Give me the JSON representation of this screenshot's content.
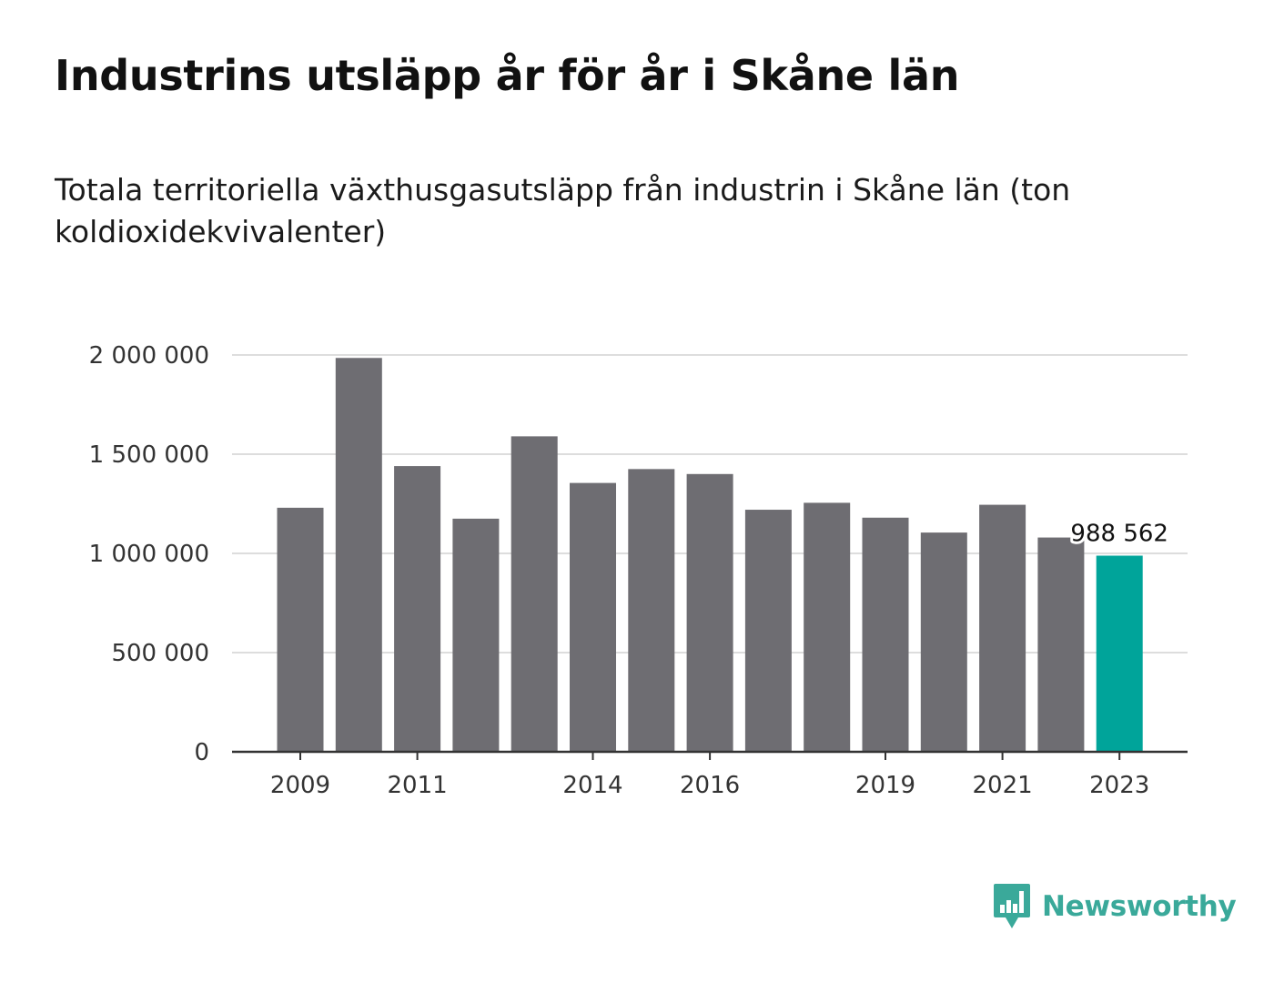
{
  "title": "Industrins utsläpp år för år i Skåne län",
  "subtitle": "Totala territoriella växthusgasutsläpp från industrin i Skåne län (ton koldioxidekvivalenter)",
  "brand": {
    "name": "Newsworthy",
    "color": "#3aa99a",
    "icon": "newsworthy-logo-icon"
  },
  "colors": {
    "bar": "#6e6d72",
    "highlight": "#00a49a",
    "grid": "#dddddd",
    "axis": "#333333",
    "text": "#333333"
  },
  "chart_data": {
    "type": "bar",
    "title": "Industrins utsläpp år för år i Skåne län",
    "subtitle": "Totala territoriella växthusgasutsläpp från industrin i Skåne län (ton koldioxidekvivalenter)",
    "xlabel": "",
    "ylabel": "",
    "categories": [
      "2009",
      "2010",
      "2011",
      "2012",
      "2013",
      "2014",
      "2015",
      "2016",
      "2017",
      "2018",
      "2019",
      "2020",
      "2021",
      "2022",
      "2023"
    ],
    "values": [
      1230000,
      1985000,
      1440000,
      1175000,
      1590000,
      1355000,
      1425000,
      1400000,
      1220000,
      1255000,
      1180000,
      1105000,
      1245000,
      1080000,
      988562
    ],
    "highlight_index": 14,
    "data_labels": [
      {
        "index": 14,
        "text": "988 562"
      }
    ],
    "x_tick_labels": [
      "2009",
      "2011",
      "2014",
      "2016",
      "2019",
      "2021",
      "2023"
    ],
    "y_ticks": [
      0,
      500000,
      1000000,
      1500000,
      2000000
    ],
    "y_tick_labels": [
      "0",
      "500 000",
      "1 000 000",
      "1 500 000",
      "2 000 000"
    ],
    "ylim": [
      0,
      2000000
    ],
    "grid": true,
    "legend": "none"
  }
}
